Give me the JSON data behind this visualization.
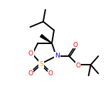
{
  "bg_color": "#ffffff",
  "oxygen_color": "#ff0000",
  "nitrogen_color": "#0000ff",
  "sulfur_color": "#ffa500",
  "bond_color": "#000000",
  "bond_lw": 1.4,
  "figsize": [
    1.52,
    1.52
  ],
  "dpi": 100,
  "xlim": [
    0,
    10
  ],
  "ylim": [
    0,
    10
  ]
}
